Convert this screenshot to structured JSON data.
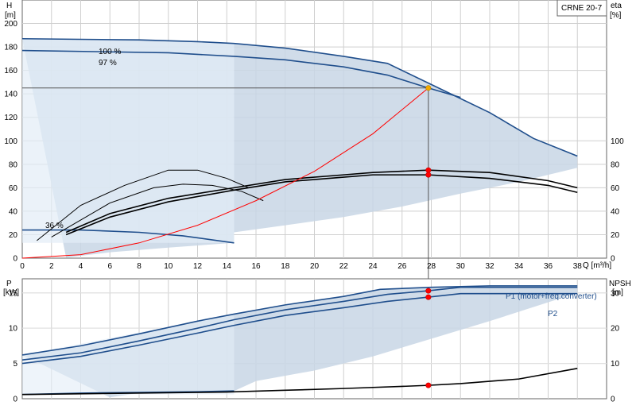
{
  "model_label": "CRNE 20-7",
  "chart_data": [
    {
      "type": "line",
      "name": "performance",
      "left_axis": {
        "label": "H",
        "unit": "[m]",
        "ylim": [
          0,
          220
        ],
        "ticks": [
          0,
          20,
          40,
          60,
          80,
          100,
          120,
          140,
          160,
          180,
          200
        ]
      },
      "right_axis": {
        "label": "eta",
        "unit": "[%]",
        "ylim": [
          0,
          220
        ],
        "ticks": [
          0,
          20,
          40,
          60,
          80,
          100
        ]
      },
      "x_axis": {
        "label": "Q [m³/h]",
        "xlim": [
          0,
          40
        ],
        "ticks": [
          0,
          2,
          4,
          6,
          8,
          10,
          12,
          14,
          16,
          18,
          20,
          22,
          24,
          26,
          28,
          30,
          32,
          34,
          36,
          38
        ]
      },
      "grid": true,
      "shaded_region": {
        "top": [
          [
            0,
            187
          ],
          [
            4,
            186.5
          ],
          [
            8,
            186
          ],
          [
            12,
            184.5
          ],
          [
            14.5,
            183
          ],
          [
            18,
            179
          ],
          [
            22,
            172
          ],
          [
            25,
            166
          ],
          [
            28,
            148
          ],
          [
            32,
            124
          ],
          [
            35,
            102
          ],
          [
            38,
            87
          ]
        ],
        "bottom": [
          [
            38,
            77
          ],
          [
            34,
            65
          ],
          [
            30,
            55
          ],
          [
            26,
            44
          ],
          [
            22,
            35
          ],
          [
            18,
            28
          ],
          [
            14.5,
            22
          ],
          [
            14.5,
            13
          ],
          [
            10,
            9
          ],
          [
            6,
            5
          ],
          [
            3,
            0.5
          ]
        ],
        "bottom_curve_label": "36 %"
      },
      "series": [
        {
          "name": "100 %",
          "role": "head_max",
          "color": "#1f4e8c",
          "points": [
            [
              0,
              187
            ],
            [
              4,
              186.5
            ],
            [
              8,
              186
            ],
            [
              12,
              184.5
            ],
            [
              14.5,
              183
            ],
            [
              18,
              179
            ],
            [
              22,
              172
            ],
            [
              25,
              166
            ],
            [
              28,
              148
            ],
            [
              32,
              124
            ],
            [
              35,
              102
            ],
            [
              38,
              87
            ]
          ]
        },
        {
          "name": "97 %",
          "role": "head_duty",
          "color": "#1f4e8c",
          "points": [
            [
              0,
              177
            ],
            [
              5,
              176
            ],
            [
              10,
              175
            ],
            [
              14.5,
              172
            ],
            [
              18,
              169
            ],
            [
              22,
              163
            ],
            [
              25,
              156
            ],
            [
              27.8,
              145
            ],
            [
              30,
              137
            ]
          ]
        },
        {
          "name": "36 %",
          "role": "head_min",
          "color": "#1f4e8c",
          "points": [
            [
              0,
              24
            ],
            [
              4,
              24
            ],
            [
              8,
              22
            ],
            [
              11,
              19
            ],
            [
              14.5,
              13
            ]
          ]
        },
        {
          "role": "efficiency",
          "color": "#000000",
          "points": [
            [
              3,
              22
            ],
            [
              6,
              38
            ],
            [
              10,
              51
            ],
            [
              14.5,
              60
            ],
            [
              18,
              67
            ],
            [
              22,
              71
            ],
            [
              24,
              73
            ],
            [
              27.8,
              75
            ],
            [
              32,
              73
            ],
            [
              36,
              66
            ],
            [
              38,
              60
            ]
          ]
        },
        {
          "role": "efficiency",
          "color": "#000000",
          "points": [
            [
              3,
              20
            ],
            [
              6,
              35
            ],
            [
              10,
              48
            ],
            [
              14.5,
              58
            ],
            [
              18,
              65
            ],
            [
              22,
              69
            ],
            [
              24,
              71
            ],
            [
              27.8,
              71
            ],
            [
              32,
              68
            ],
            [
              36,
              62
            ],
            [
              38,
              56
            ]
          ]
        },
        {
          "role": "efficiency_reduced_speed",
          "color": "#000000",
          "points": [
            [
              2,
              18
            ],
            [
              6,
              47
            ],
            [
              9,
              60
            ],
            [
              11,
              63
            ],
            [
              13,
              62
            ],
            [
              15,
              57
            ],
            [
              16.5,
              49
            ]
          ]
        },
        {
          "role": "efficiency_reduced_speed",
          "color": "#000000",
          "points": [
            [
              1,
              15
            ],
            [
              4,
              45
            ],
            [
              7,
              62
            ],
            [
              10,
              75
            ],
            [
              12,
              75
            ],
            [
              14,
              68
            ],
            [
              15.5,
              60
            ]
          ]
        },
        {
          "role": "system_curve",
          "color": "#ff0000",
          "points": [
            [
              0,
              0
            ],
            [
              4,
              3
            ],
            [
              8,
              13
            ],
            [
              12,
              28
            ],
            [
              16,
              49
            ],
            [
              20,
              74
            ],
            [
              24,
              106
            ],
            [
              27.8,
              145
            ]
          ]
        }
      ],
      "duty_point": {
        "q": 27.8,
        "h": 145
      },
      "markers": [
        {
          "q": 27.8,
          "value": 145,
          "color": "#f2a900"
        },
        {
          "q": 27.8,
          "value": 75,
          "color": "#ff0000"
        },
        {
          "q": 27.8,
          "value": 71,
          "color": "#ff0000"
        }
      ],
      "annotations": [
        "100 %",
        "97 %",
        "36 %"
      ]
    },
    {
      "type": "line",
      "name": "power_npsh",
      "left_axis": {
        "label": "P",
        "unit": "[kW]",
        "ylim": [
          0,
          17
        ],
        "ticks": [
          0,
          5,
          10,
          15
        ]
      },
      "right_axis": {
        "label": "NPSH",
        "unit": "[m]",
        "ylim": [
          0,
          34
        ],
        "ticks": [
          0,
          10,
          20,
          30
        ]
      },
      "x_axis": {
        "xlim": [
          0,
          40
        ]
      },
      "grid": true,
      "shaded_region": {
        "top": [
          [
            0,
            6.2
          ],
          [
            4,
            7.5
          ],
          [
            8,
            9.2
          ],
          [
            12,
            11
          ],
          [
            14.5,
            12
          ],
          [
            18,
            13.3
          ],
          [
            22,
            14.5
          ],
          [
            24.5,
            15.5
          ],
          [
            28,
            15.8
          ],
          [
            32,
            16
          ],
          [
            38,
            16
          ]
        ],
        "bottom": [
          [
            38,
            15
          ],
          [
            32,
            11
          ],
          [
            28,
            8.5
          ],
          [
            24,
            6
          ],
          [
            20,
            4
          ],
          [
            16,
            2.5
          ],
          [
            14.5,
            1.1
          ],
          [
            8,
            0.8
          ],
          [
            6,
            0.2
          ]
        ]
      },
      "series": [
        {
          "name": "P1 (motor+freq.converter)",
          "role": "p1",
          "color": "#1f4e8c",
          "points": [
            [
              0,
              6.2
            ],
            [
              4,
              7.5
            ],
            [
              8,
              9.2
            ],
            [
              12,
              11
            ],
            [
              14.5,
              12
            ],
            [
              18,
              13.3
            ],
            [
              22,
              14.5
            ],
            [
              24.5,
              15.5
            ],
            [
              28,
              15.8
            ],
            [
              32,
              16
            ],
            [
              38,
              16
            ]
          ]
        },
        {
          "role": "p1_duty",
          "color": "#1f4e8c",
          "points": [
            [
              0,
              5.5
            ],
            [
              4,
              6.5
            ],
            [
              8,
              8.2
            ],
            [
              12,
              10
            ],
            [
              14.5,
              11.2
            ],
            [
              18,
              12.6
            ],
            [
              22,
              13.8
            ],
            [
              25,
              14.8
            ],
            [
              27.8,
              15.3
            ],
            [
              30,
              15.8
            ],
            [
              38,
              15.8
            ]
          ]
        },
        {
          "name": "P2",
          "role": "p2",
          "color": "#1f4e8c",
          "points": [
            [
              0,
              5.0
            ],
            [
              4,
              6
            ],
            [
              8,
              7.6
            ],
            [
              12,
              9.3
            ],
            [
              14.5,
              10.4
            ],
            [
              18,
              11.8
            ],
            [
              22,
              12.9
            ],
            [
              25,
              13.8
            ],
            [
              27.8,
              14.4
            ],
            [
              30,
              14.9
            ],
            [
              38,
              14.9
            ]
          ]
        },
        {
          "role": "p_min",
          "color": "#1f4e8c",
          "points": [
            [
              0,
              0.6
            ],
            [
              4,
              0.8
            ],
            [
              8,
              0.9
            ],
            [
              12,
              1.0
            ],
            [
              14.5,
              1.1
            ]
          ]
        },
        {
          "role": "npsh",
          "color": "#000000",
          "axis": "right",
          "points": [
            [
              0,
              1.2
            ],
            [
              6,
              1.5
            ],
            [
              10,
              1.7
            ],
            [
              14,
              1.9
            ],
            [
              18,
              2.4
            ],
            [
              22,
              2.9
            ],
            [
              26,
              3.5
            ],
            [
              27.8,
              3.8
            ],
            [
              30,
              4.3
            ],
            [
              34,
              5.6
            ],
            [
              38,
              8.6
            ]
          ]
        }
      ],
      "markers": [
        {
          "q": 27.8,
          "value": 15.3,
          "color": "#ff0000"
        },
        {
          "q": 27.8,
          "value": 14.4,
          "color": "#ff0000"
        },
        {
          "q": 27.8,
          "value": 1.9,
          "color": "#ff0000"
        }
      ],
      "annotations": [
        "P1 (motor+freq.converter)",
        "P2"
      ]
    }
  ]
}
